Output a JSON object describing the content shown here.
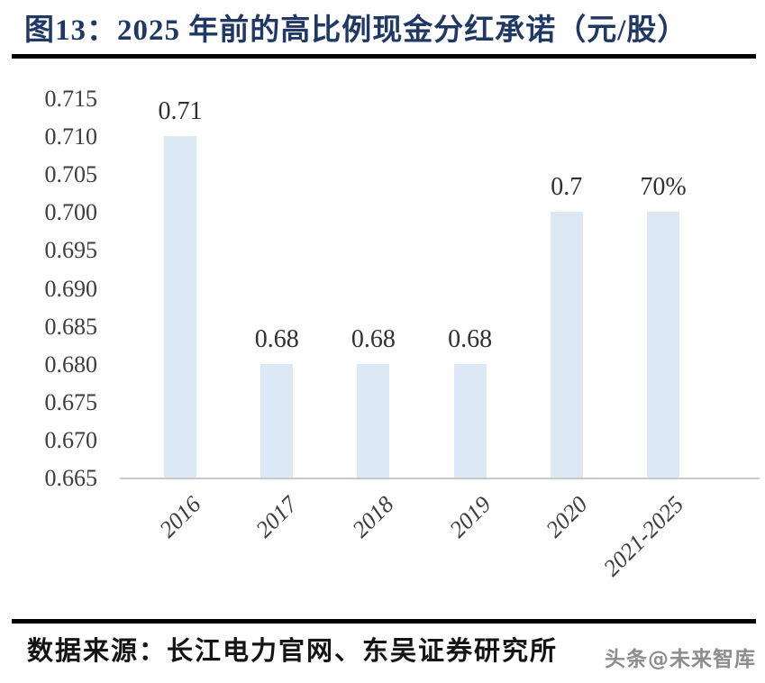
{
  "header": {
    "title": "图13：2025 年前的高比例现金分红承诺（元/股）"
  },
  "chart_data": {
    "type": "bar",
    "title": "2025 年前的高比例现金分红承诺（元/股）",
    "categories": [
      "2016",
      "2017",
      "2018",
      "2019",
      "2020",
      "2021-2025"
    ],
    "values": [
      0.71,
      0.68,
      0.68,
      0.68,
      0.7,
      0.7
    ],
    "bar_labels": [
      "0.71",
      "0.68",
      "0.68",
      "0.68",
      "0.7",
      "70%"
    ],
    "xlabel": "",
    "ylabel": "",
    "ylim": [
      0.665,
      0.715
    ],
    "ytick_step": 0.005,
    "ytick_labels": [
      "0.715",
      "0.710",
      "0.705",
      "0.700",
      "0.695",
      "0.690",
      "0.685",
      "0.680",
      "0.675",
      "0.670",
      "0.665"
    ],
    "grid": false,
    "legend": false,
    "bar_color": "#dce9f5",
    "axis_line_color": "#c9c9c9",
    "tick_text_color": "#3d3d3d",
    "bar_label_color": "#303030"
  },
  "footer": {
    "source": "数据来源：长江电力官网、东吴证券研究所",
    "watermark": "头条@未来智库"
  },
  "colors": {
    "title": "#1f3864",
    "divider": "#000000",
    "background": "#ffffff"
  }
}
